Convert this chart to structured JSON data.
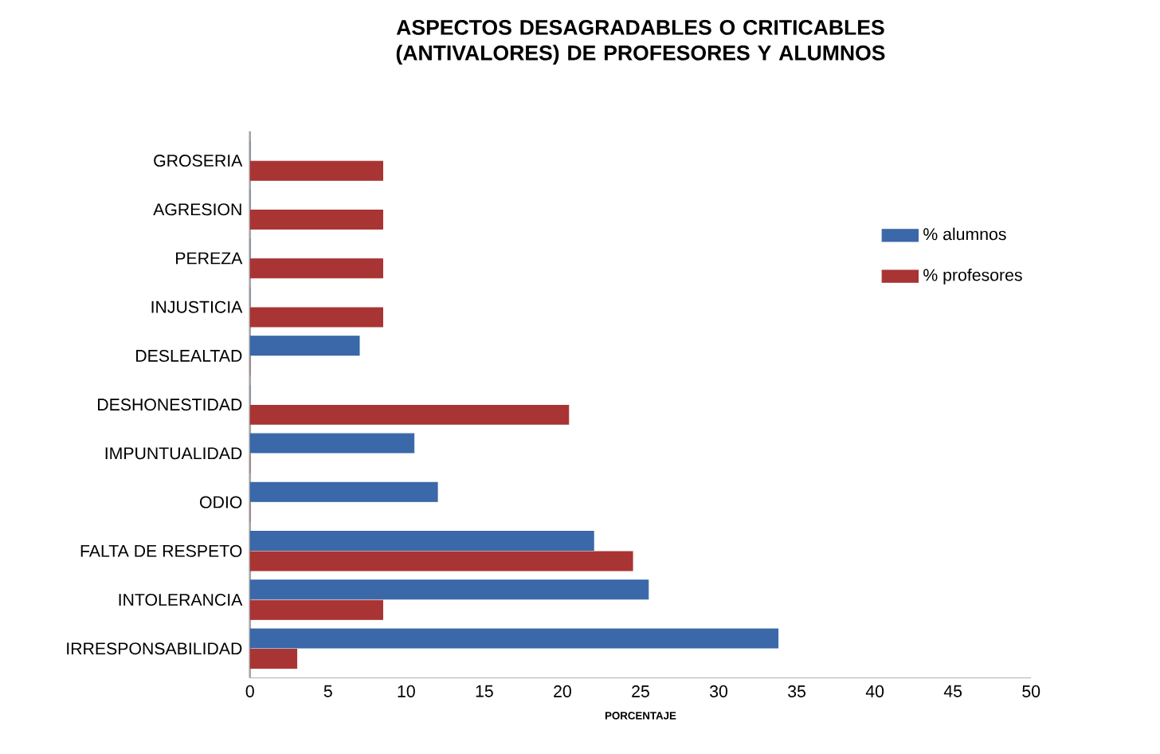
{
  "chart_data": {
    "type": "bar",
    "orientation": "horizontal",
    "title": "ASPECTOS DESAGRADABLES O CRITICABLES (ANTIVALORES) DE PROFESORES Y ALUMNOS",
    "xlabel": "PORCENTAJE",
    "categories": [
      "GROSERIA",
      "AGRESION",
      "PEREZA",
      "INJUSTICIA",
      "DESLEALTAD",
      "DESHONESTIDAD",
      "IMPUNTUALIDAD",
      "ODIO",
      "FALTA DE RESPETO",
      "INTOLERANCIA",
      "IRRESPONSABILIDAD"
    ],
    "series": [
      {
        "name": "% alumnos",
        "color": "#3a68a8",
        "values": [
          0,
          0,
          0,
          0,
          7,
          0,
          10.5,
          12,
          22,
          25.5,
          33.8
        ]
      },
      {
        "name": "% profesores",
        "color": "#a93434",
        "values": [
          8.5,
          8.5,
          8.5,
          8.5,
          0,
          20.4,
          0,
          0,
          24.5,
          8.5,
          3
        ]
      }
    ],
    "xlim": [
      0,
      50
    ],
    "xticks": [
      0,
      5,
      10,
      15,
      20,
      25,
      30,
      35,
      40,
      45,
      50
    ],
    "grid": false,
    "legend": "right"
  }
}
